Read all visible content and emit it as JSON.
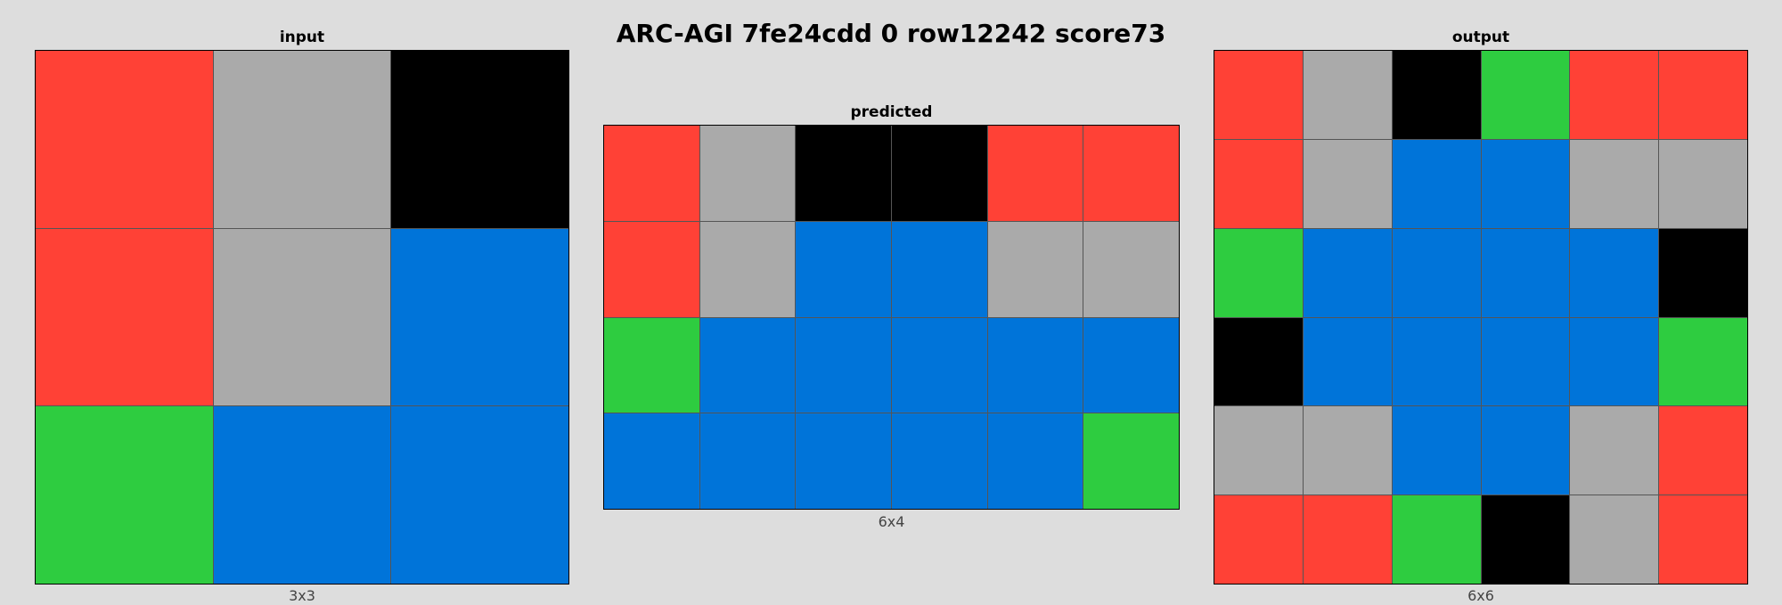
{
  "title": "ARC-AGI 7fe24cdd 0 row12242 score73",
  "palette": {
    "1": "#0074D9",
    "2": "#FF4136",
    "3": "#2ECC40",
    "5": "#AAAAAA",
    "0": "#000000"
  },
  "panels": {
    "input": {
      "label": "input",
      "dims": "3x3",
      "rows": 3,
      "cols": 3,
      "grid": [
        [
          2,
          5,
          0
        ],
        [
          2,
          5,
          1
        ],
        [
          3,
          1,
          1
        ]
      ]
    },
    "predicted": {
      "label": "predicted",
      "dims": "6x4",
      "rows": 4,
      "cols": 6,
      "grid": [
        [
          2,
          5,
          0,
          0,
          2,
          2
        ],
        [
          2,
          5,
          1,
          1,
          5,
          5
        ],
        [
          3,
          1,
          1,
          1,
          1,
          1
        ],
        [
          1,
          1,
          1,
          1,
          1,
          3
        ]
      ]
    },
    "output": {
      "label": "output",
      "dims": "6x6",
      "rows": 6,
      "cols": 6,
      "grid": [
        [
          2,
          5,
          0,
          3,
          2,
          2
        ],
        [
          2,
          5,
          1,
          1,
          5,
          5
        ],
        [
          3,
          1,
          1,
          1,
          1,
          0
        ],
        [
          0,
          1,
          1,
          1,
          1,
          3
        ],
        [
          5,
          5,
          1,
          1,
          5,
          2
        ],
        [
          2,
          2,
          3,
          0,
          5,
          2
        ]
      ]
    }
  }
}
